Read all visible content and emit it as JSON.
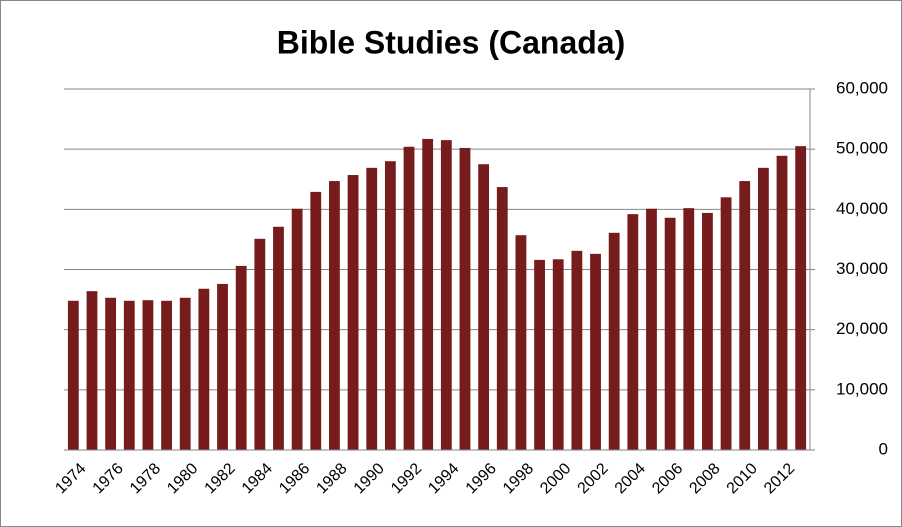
{
  "chart_data": {
    "type": "bar",
    "title": "Bible Studies (Canada)",
    "categories": [
      "1974",
      null,
      "1976",
      null,
      "1978",
      null,
      "1980",
      null,
      "1982",
      null,
      "1984",
      null,
      "1986",
      null,
      "1988",
      null,
      "1990",
      null,
      "1992",
      null,
      "1994",
      null,
      "1996",
      null,
      "1998",
      null,
      "2000",
      null,
      "2002",
      null,
      "2004",
      null,
      "2006",
      null,
      "2008",
      null,
      "2010",
      null,
      "2012",
      null
    ],
    "values": [
      24800,
      26400,
      25300,
      24800,
      24900,
      24800,
      25300,
      26800,
      27600,
      30600,
      35100,
      37100,
      40100,
      42900,
      44700,
      45700,
      46900,
      48000,
      50400,
      51700,
      51500,
      50200,
      47500,
      43700,
      35700,
      31600,
      31700,
      33100,
      32600,
      36100,
      39200,
      40100,
      38600,
      40200,
      39400,
      42000,
      44700,
      46900,
      48900,
      50500
    ],
    "color": "#771c1c",
    "ylim": [
      0,
      60000
    ],
    "yticks": [
      0,
      {
        "value": 10000,
        "label": "10,000"
      },
      {
        "value": 20000,
        "label": "20,000"
      },
      {
        "value": 30000,
        "label": "30,000"
      },
      {
        "value": 40000,
        "label": "40,000"
      },
      {
        "value": 50000,
        "label": "50,000"
      },
      {
        "value": 60000,
        "label": "60,000"
      }
    ],
    "grid": true,
    "y_axis_side": "right"
  }
}
